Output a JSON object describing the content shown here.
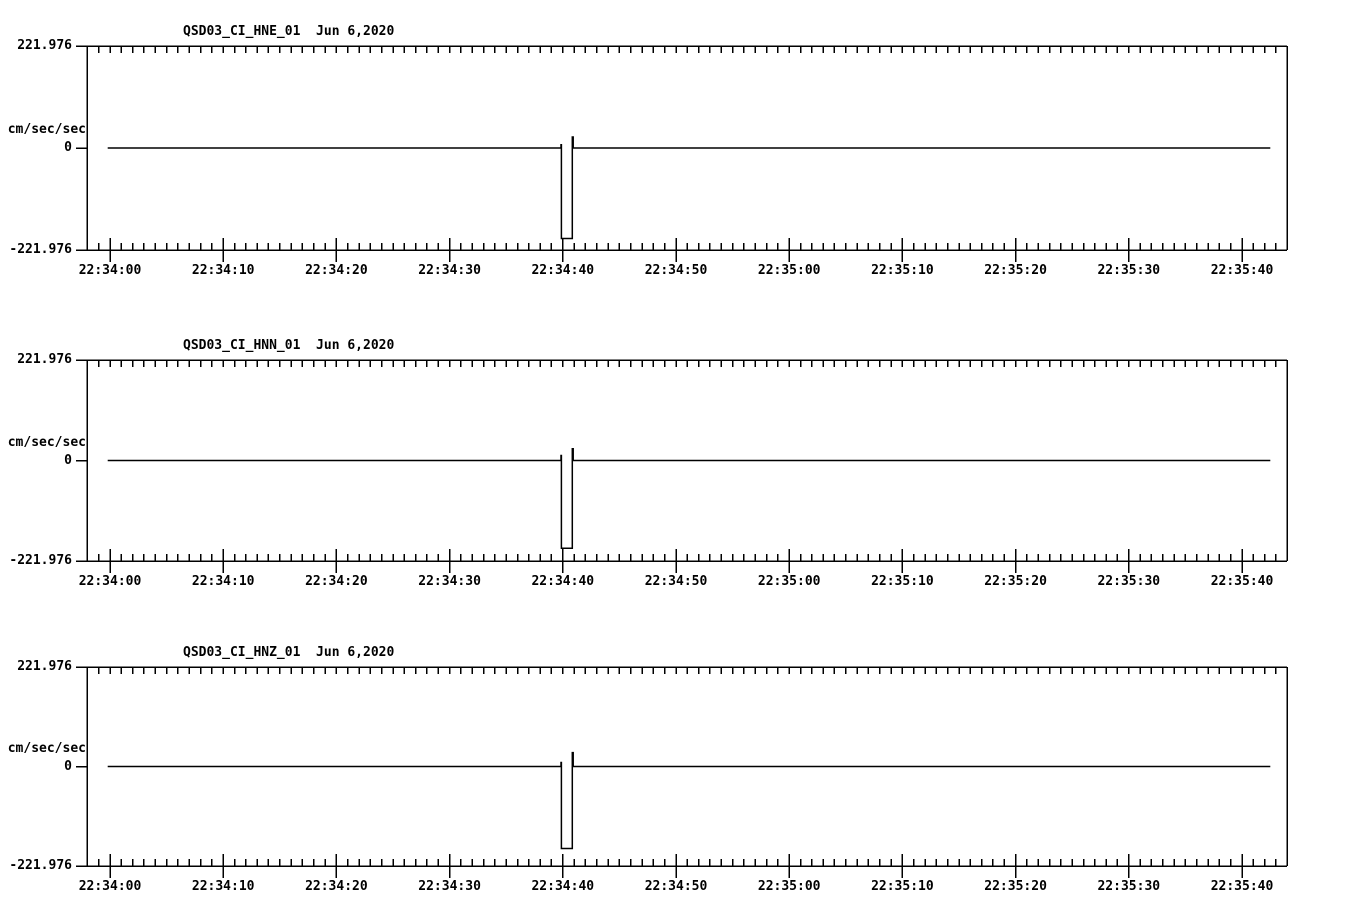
{
  "page": {
    "background_color": "#ffffff",
    "ink_color": "#000000",
    "description": "Three-channel strong-motion seismogram strip plots"
  },
  "y_axis": {
    "units_label": "cm/sec/sec",
    "max_label": "221.976",
    "zero_label": "0",
    "min_label": "-221.976",
    "max_value": 221.976,
    "min_value": -221.976
  },
  "x_axis": {
    "tick_labels": [
      "22:34:00",
      "22:34:10",
      "22:34:20",
      "22:34:30",
      "22:34:40",
      "22:34:50",
      "22:35:00",
      "22:35:10",
      "22:35:20",
      "22:35:30",
      "22:35:40"
    ],
    "major_interval_seconds": 10,
    "minor_interval_seconds": 1,
    "start_time": "22:34:00",
    "end_time": "22:35:40"
  },
  "chart_data": [
    {
      "type": "line",
      "title": "QSD03_CI_HNE_01",
      "date": "Jun 6,2020",
      "title_full": "QSD03_CI_HNE_01  Jun 6,2020",
      "ylabel": "cm/sec/sec",
      "ylim": [
        -221.976,
        221.976
      ],
      "yticks": [
        "221.976",
        "0",
        "-221.976"
      ],
      "x_seconds_visible": [
        -2,
        104
      ],
      "grid": false,
      "series": [
        {
          "name": "HNE acceleration",
          "points_t_seconds_after_22_34_00__value_cm_s2": [
            [
              -0.2,
              0
            ],
            [
              39.84,
              0
            ],
            [
              39.84,
              7
            ],
            [
              39.88,
              7
            ],
            [
              39.88,
              -197
            ],
            [
              40.84,
              -197
            ],
            [
              40.84,
              24
            ],
            [
              40.92,
              24
            ],
            [
              40.92,
              0
            ],
            [
              102.5,
              0
            ]
          ]
        }
      ]
    },
    {
      "type": "line",
      "title": "QSD03_CI_HNN_01",
      "date": "Jun 6,2020",
      "title_full": "QSD03_CI_HNN_01  Jun 6,2020",
      "ylabel": "cm/sec/sec",
      "ylim": [
        -221.976,
        221.976
      ],
      "yticks": [
        "221.976",
        "0",
        "-221.976"
      ],
      "x_seconds_visible": [
        -2,
        104
      ],
      "grid": false,
      "series": [
        {
          "name": "HNN acceleration",
          "points_t_seconds_after_22_34_00__value_cm_s2": [
            [
              -0.2,
              0
            ],
            [
              39.84,
              0
            ],
            [
              39.84,
              11
            ],
            [
              39.88,
              11
            ],
            [
              39.88,
              -194
            ],
            [
              40.84,
              -194
            ],
            [
              40.84,
              26
            ],
            [
              40.92,
              26
            ],
            [
              40.92,
              0
            ],
            [
              102.5,
              0
            ]
          ]
        }
      ]
    },
    {
      "type": "line",
      "title": "QSD03_CI_HNZ_01",
      "date": "Jun 6,2020",
      "title_full": "QSD03_CI_HNZ_01  Jun 6,2020",
      "ylabel": "cm/sec/sec",
      "ylim": [
        -221.976,
        221.976
      ],
      "yticks": [
        "221.976",
        "0",
        "-221.976"
      ],
      "x_seconds_visible": [
        -2,
        104
      ],
      "grid": false,
      "series": [
        {
          "name": "HNZ acceleration",
          "points_t_seconds_after_22_34_00__value_cm_s2": [
            [
              -0.2,
              0
            ],
            [
              39.84,
              0
            ],
            [
              39.84,
              9
            ],
            [
              39.88,
              9
            ],
            [
              39.88,
              -183
            ],
            [
              40.84,
              -183
            ],
            [
              40.84,
              31
            ],
            [
              40.92,
              31
            ],
            [
              40.92,
              0
            ],
            [
              102.5,
              0
            ]
          ]
        }
      ]
    }
  ]
}
